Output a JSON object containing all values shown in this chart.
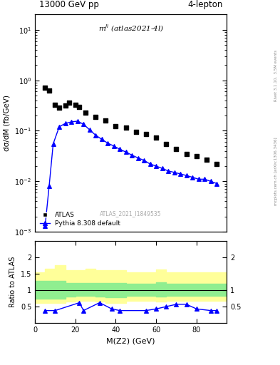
{
  "title_left": "13000 GeV pp",
  "title_right": "4-lepton",
  "annotation": "m$^{ll}$ (atlas2021-4l)",
  "watermark": "ATLAS_2021_I1849535",
  "right_label_top": "Rivet 3.1.10,  3.5M events",
  "right_label_bot": "mcplots.cern.ch [arXiv:1306.3436]",
  "ylabel_main": "dσ/dM (fb/GeV)",
  "ylabel_ratio": "Ratio to ATLAS",
  "xlabel": "M(Z2) (GeV)",
  "atlas_x": [
    5,
    7,
    10,
    12,
    15,
    17,
    20,
    22,
    25,
    30,
    35,
    40,
    45,
    50,
    55,
    60,
    65,
    70,
    75,
    80,
    85,
    90
  ],
  "atlas_y": [
    0.72,
    0.62,
    0.33,
    0.29,
    0.32,
    0.36,
    0.33,
    0.3,
    0.23,
    0.19,
    0.16,
    0.125,
    0.115,
    0.095,
    0.085,
    0.073,
    0.055,
    0.044,
    0.035,
    0.032,
    0.027,
    0.022
  ],
  "pythia_x": [
    5,
    7,
    9,
    12,
    15,
    18,
    21,
    24,
    27,
    30,
    33,
    36,
    39,
    42,
    45,
    48,
    51,
    54,
    57,
    60,
    63,
    66,
    69,
    72,
    75,
    78,
    81,
    84,
    87,
    90
  ],
  "pythia_y": [
    0.0013,
    0.008,
    0.055,
    0.12,
    0.14,
    0.15,
    0.155,
    0.135,
    0.105,
    0.082,
    0.068,
    0.057,
    0.05,
    0.043,
    0.038,
    0.033,
    0.029,
    0.026,
    0.022,
    0.02,
    0.018,
    0.016,
    0.015,
    0.014,
    0.013,
    0.012,
    0.011,
    0.011,
    0.01,
    0.009
  ],
  "ratio_x": [
    5,
    10,
    22,
    24,
    32,
    38,
    42,
    55,
    60,
    65,
    70,
    75,
    80,
    87,
    90
  ],
  "ratio_y": [
    0.38,
    0.38,
    0.62,
    0.38,
    0.62,
    0.43,
    0.38,
    0.38,
    0.43,
    0.5,
    0.57,
    0.57,
    0.43,
    0.38,
    0.38
  ],
  "xlim": [
    0,
    95
  ],
  "ylim_main": [
    0.001,
    20
  ],
  "ylim_ratio": [
    0.0,
    2.5
  ],
  "atlas_color": "black",
  "pythia_color": "blue",
  "green_color": "#90EE90",
  "yellow_color": "#FFFF99",
  "band_edges": [
    0,
    5,
    10,
    15,
    20,
    25,
    30,
    35,
    40,
    45,
    50,
    55,
    60,
    65,
    70,
    75,
    80,
    85,
    90,
    95
  ],
  "green_lo": [
    0.73,
    0.73,
    0.73,
    0.8,
    0.82,
    0.82,
    0.8,
    0.78,
    0.78,
    0.82,
    0.82,
    0.82,
    0.8,
    0.82,
    0.82,
    0.82,
    0.82,
    0.82,
    0.82,
    0.82
  ],
  "green_hi": [
    1.28,
    1.28,
    1.28,
    1.22,
    1.22,
    1.22,
    1.22,
    1.22,
    1.22,
    1.2,
    1.2,
    1.2,
    1.25,
    1.2,
    1.2,
    1.2,
    1.2,
    1.2,
    1.2,
    1.2
  ],
  "yellow_lo": [
    0.6,
    0.6,
    0.6,
    0.65,
    0.68,
    0.68,
    0.65,
    0.62,
    0.62,
    0.68,
    0.68,
    0.68,
    0.65,
    0.68,
    0.68,
    0.68,
    0.68,
    0.68,
    0.68,
    0.68
  ],
  "yellow_hi": [
    1.55,
    1.65,
    1.75,
    1.6,
    1.6,
    1.65,
    1.6,
    1.6,
    1.6,
    1.55,
    1.55,
    1.55,
    1.62,
    1.55,
    1.55,
    1.55,
    1.55,
    1.55,
    1.55,
    1.55
  ]
}
